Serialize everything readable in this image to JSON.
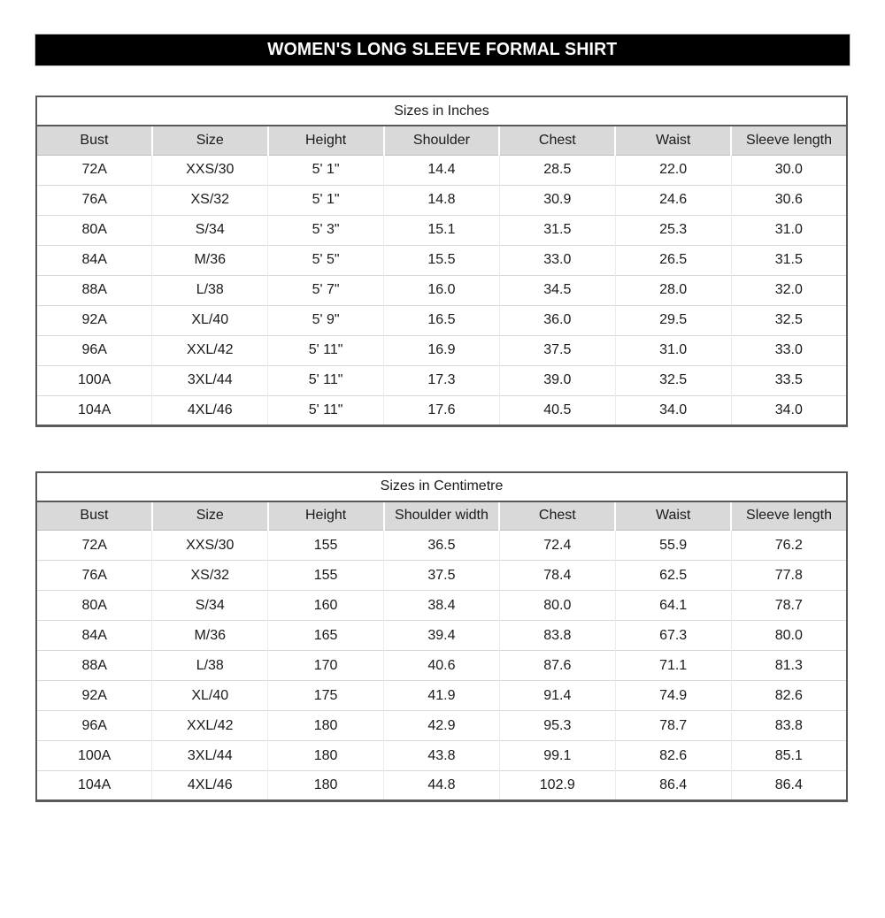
{
  "banner": {
    "title": "WOMEN'S LONG SLEEVE FORMAL SHIRT"
  },
  "tables": [
    {
      "title": "Sizes in Inches",
      "columns": [
        "Bust",
        "Size",
        "Height",
        "Shoulder",
        "Chest",
        "Waist",
        "Sleeve length"
      ],
      "rows": [
        [
          "72A",
          "XXS/30",
          "5' 1\"",
          "14.4",
          "28.5",
          "22.0",
          "30.0"
        ],
        [
          "76A",
          "XS/32",
          "5' 1\"",
          "14.8",
          "30.9",
          "24.6",
          "30.6"
        ],
        [
          "80A",
          "S/34",
          "5' 3\"",
          "15.1",
          "31.5",
          "25.3",
          "31.0"
        ],
        [
          "84A",
          "M/36",
          "5' 5\"",
          "15.5",
          "33.0",
          "26.5",
          "31.5"
        ],
        [
          "88A",
          "L/38",
          "5' 7\"",
          "16.0",
          "34.5",
          "28.0",
          "32.0"
        ],
        [
          "92A",
          "XL/40",
          "5' 9\"",
          "16.5",
          "36.0",
          "29.5",
          "32.5"
        ],
        [
          "96A",
          "XXL/42",
          "5' 11\"",
          "16.9",
          "37.5",
          "31.0",
          "33.0"
        ],
        [
          "100A",
          "3XL/44",
          "5' 11\"",
          "17.3",
          "39.0",
          "32.5",
          "33.5"
        ],
        [
          "104A",
          "4XL/46",
          "5' 11\"",
          "17.6",
          "40.5",
          "34.0",
          "34.0"
        ]
      ]
    },
    {
      "title": "Sizes in Centimetre",
      "columns": [
        "Bust",
        "Size",
        "Height",
        "Shoulder width",
        "Chest",
        "Waist",
        "Sleeve length"
      ],
      "rows": [
        [
          "72A",
          "XXS/30",
          "155",
          "36.5",
          "72.4",
          "55.9",
          "76.2"
        ],
        [
          "76A",
          "XS/32",
          "155",
          "37.5",
          "78.4",
          "62.5",
          "77.8"
        ],
        [
          "80A",
          "S/34",
          "160",
          "38.4",
          "80.0",
          "64.1",
          "78.7"
        ],
        [
          "84A",
          "M/36",
          "165",
          "39.4",
          "83.8",
          "67.3",
          "80.0"
        ],
        [
          "88A",
          "L/38",
          "170",
          "40.6",
          "87.6",
          "71.1",
          "81.3"
        ],
        [
          "92A",
          "XL/40",
          "175",
          "41.9",
          "91.4",
          "74.9",
          "82.6"
        ],
        [
          "96A",
          "XXL/42",
          "180",
          "42.9",
          "95.3",
          "78.7",
          "83.8"
        ],
        [
          "100A",
          "3XL/44",
          "180",
          "43.8",
          "99.1",
          "82.6",
          "85.1"
        ],
        [
          "104A",
          "4XL/46",
          "180",
          "44.8",
          "102.9",
          "86.4",
          "86.4"
        ]
      ]
    }
  ],
  "colors": {
    "banner_bg": "#000000",
    "banner_text": "#ffffff",
    "header_bg": "#d9d9d9",
    "table_border": "#595959",
    "row_line": "#d9d9d9"
  }
}
